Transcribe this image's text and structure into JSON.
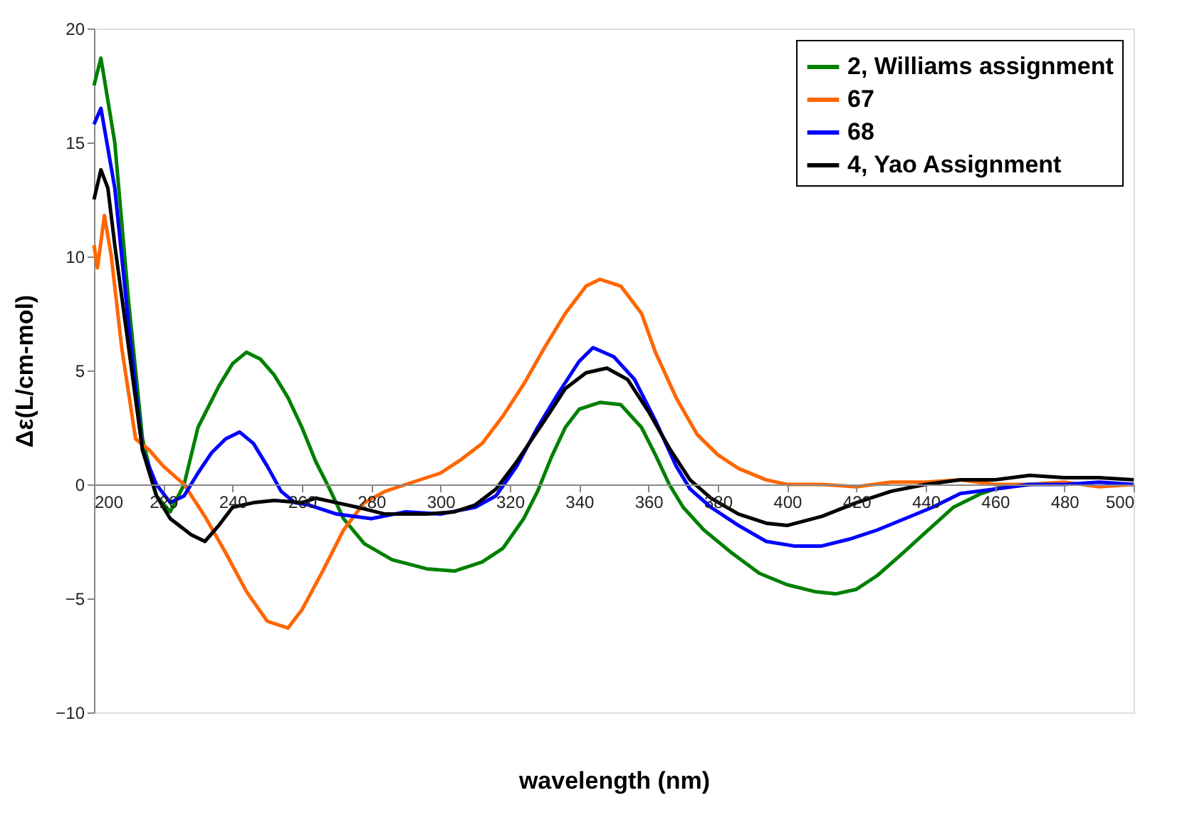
{
  "chart_data": {
    "type": "line",
    "xlabel": "wavelength (nm)",
    "ylabel": "Δε(L/cm-mol)",
    "xlim": [
      200,
      500
    ],
    "ylim": [
      -10,
      20
    ],
    "xticks": [
      200,
      220,
      240,
      260,
      280,
      300,
      320,
      340,
      360,
      380,
      400,
      420,
      440,
      460,
      480,
      500
    ],
    "yticks": [
      -10,
      -5,
      0,
      5,
      10,
      15,
      20
    ],
    "grid": false,
    "legend": "top right",
    "marker": "none",
    "line_style": "solid",
    "series": [
      {
        "name": "2, Williams assignment",
        "color": "#008000",
        "x": [
          200,
          202,
          206,
          210,
          214,
          218,
          222,
          226,
          230,
          236,
          240,
          244,
          248,
          252,
          256,
          260,
          264,
          268,
          272,
          278,
          286,
          296,
          304,
          312,
          318,
          324,
          328,
          332,
          336,
          340,
          346,
          352,
          358,
          362,
          366,
          370,
          376,
          384,
          392,
          400,
          408,
          414,
          420,
          426,
          432,
          440,
          448,
          456,
          462,
          470
        ],
        "values": [
          17.5,
          18.7,
          15,
          8,
          2,
          -0.5,
          -1.2,
          0,
          2.5,
          4.3,
          5.3,
          5.8,
          5.5,
          4.8,
          3.8,
          2.5,
          1.0,
          -0.2,
          -1.5,
          -2.6,
          -3.3,
          -3.7,
          -3.8,
          -3.4,
          -2.8,
          -1.5,
          -0.3,
          1.2,
          2.5,
          3.3,
          3.6,
          3.5,
          2.5,
          1.3,
          0,
          -1.0,
          -2.0,
          -3.0,
          -3.9,
          -4.4,
          -4.7,
          -4.8,
          -4.6,
          -4.0,
          -3.2,
          -2.1,
          -1.0,
          -0.4,
          -0.1,
          0
        ]
      },
      {
        "name": "67",
        "color": "#ff6600",
        "x": [
          200,
          201,
          203,
          205,
          208,
          212,
          216,
          220,
          226,
          232,
          238,
          244,
          250,
          256,
          260,
          266,
          272,
          278,
          284,
          290,
          300,
          306,
          312,
          318,
          324,
          330,
          336,
          342,
          346,
          352,
          358,
          362,
          368,
          374,
          380,
          386,
          394,
          400,
          410,
          420,
          430,
          440,
          450,
          460,
          470,
          480,
          490,
          500
        ],
        "values": [
          10.5,
          9.5,
          11.8,
          10,
          6,
          2,
          1.5,
          0.8,
          0,
          -1.4,
          -3,
          -4.7,
          -6,
          -6.3,
          -5.5,
          -3.8,
          -2,
          -0.8,
          -0.3,
          0,
          0.5,
          1.1,
          1.8,
          3.0,
          4.4,
          6.0,
          7.5,
          8.7,
          9.0,
          8.7,
          7.5,
          5.8,
          3.8,
          2.2,
          1.3,
          0.7,
          0.2,
          0,
          0,
          -0.1,
          0.1,
          0.1,
          0.2,
          0,
          0,
          0.1,
          -0.1,
          0
        ]
      },
      {
        "name": "68",
        "color": "#0000ff",
        "x": [
          200,
          202,
          206,
          210,
          214,
          218,
          222,
          226,
          230,
          234,
          238,
          242,
          246,
          250,
          254,
          258,
          262,
          270,
          280,
          290,
          300,
          310,
          316,
          322,
          328,
          334,
          340,
          344,
          350,
          356,
          362,
          368,
          372,
          378,
          386,
          394,
          402,
          410,
          418,
          426,
          434,
          442,
          450,
          460,
          470,
          480,
          490,
          500
        ],
        "values": [
          15.8,
          16.5,
          13,
          7,
          1.5,
          0,
          -0.8,
          -0.5,
          0.5,
          1.4,
          2.0,
          2.3,
          1.8,
          0.8,
          -0.3,
          -0.8,
          -0.9,
          -1.3,
          -1.5,
          -1.2,
          -1.3,
          -1.0,
          -0.5,
          0.8,
          2.5,
          4.0,
          5.4,
          6.0,
          5.6,
          4.6,
          2.8,
          0.8,
          -0.2,
          -1.0,
          -1.8,
          -2.5,
          -2.7,
          -2.7,
          -2.4,
          -2.0,
          -1.5,
          -1.0,
          -0.4,
          -0.2,
          0,
          0,
          0.1,
          0
        ]
      },
      {
        "name": "4, Yao Assignment",
        "color": "#000000",
        "x": [
          200,
          202,
          204,
          206,
          210,
          214,
          218,
          222,
          228,
          232,
          236,
          240,
          246,
          252,
          260,
          264,
          270,
          276,
          284,
          296,
          304,
          310,
          316,
          322,
          330,
          336,
          342,
          348,
          354,
          360,
          366,
          372,
          378,
          386,
          394,
          400,
          410,
          420,
          430,
          440,
          450,
          460,
          470,
          480,
          490,
          500
        ],
        "values": [
          12.5,
          13.8,
          13,
          10.5,
          6,
          1.5,
          -0.5,
          -1.5,
          -2.2,
          -2.5,
          -1.8,
          -1.0,
          -0.8,
          -0.7,
          -0.8,
          -0.6,
          -0.8,
          -1.0,
          -1.3,
          -1.3,
          -1.2,
          -0.9,
          -0.2,
          1.0,
          2.8,
          4.2,
          4.9,
          5.1,
          4.6,
          3.2,
          1.6,
          0.2,
          -0.6,
          -1.3,
          -1.7,
          -1.8,
          -1.4,
          -0.8,
          -0.3,
          0,
          0.2,
          0.2,
          0.4,
          0.3,
          0.3,
          0.2
        ]
      }
    ]
  }
}
